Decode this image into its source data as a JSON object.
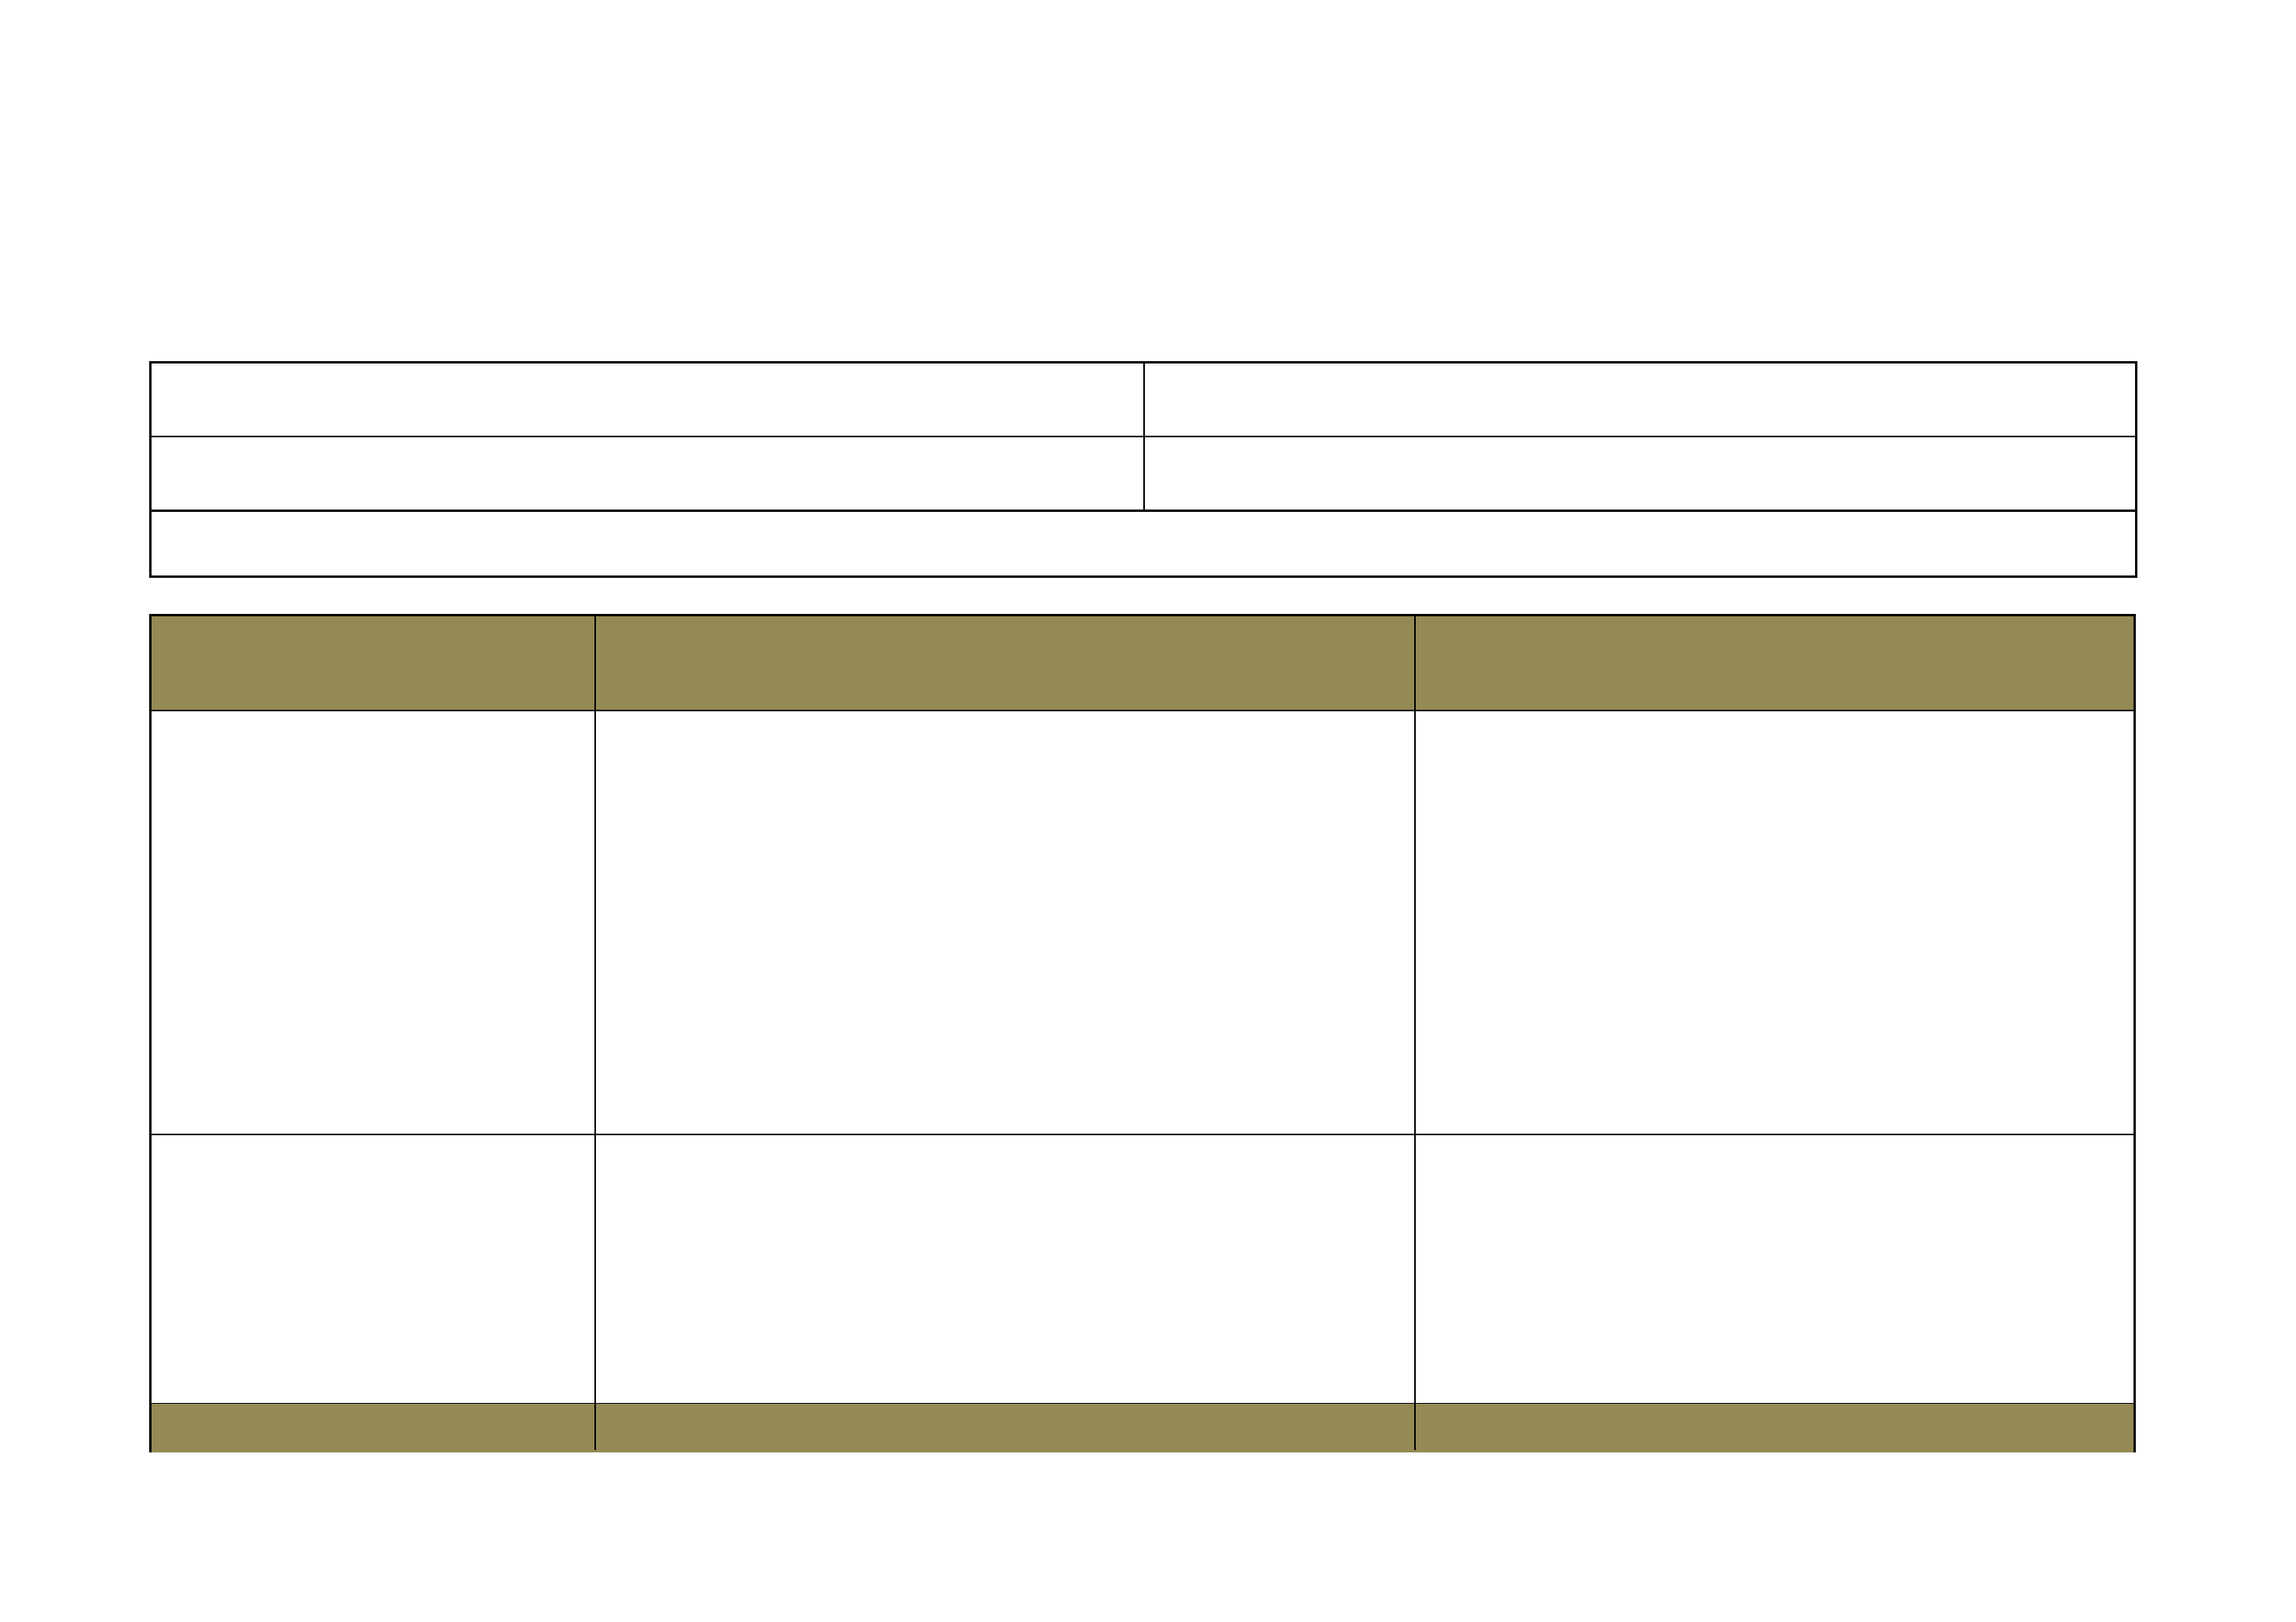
{
  "colors": {
    "header_fill": "#958a54",
    "border": "#000000",
    "background": "#ffffff"
  },
  "info_table": {
    "rows": [
      [
        "",
        ""
      ],
      [
        "",
        ""
      ],
      [
        ""
      ]
    ]
  },
  "main_table": {
    "headers": [
      "",
      "",
      ""
    ],
    "rows": [
      [
        "",
        "",
        ""
      ],
      [
        "",
        "",
        ""
      ]
    ],
    "footer": [
      "",
      "",
      ""
    ]
  }
}
